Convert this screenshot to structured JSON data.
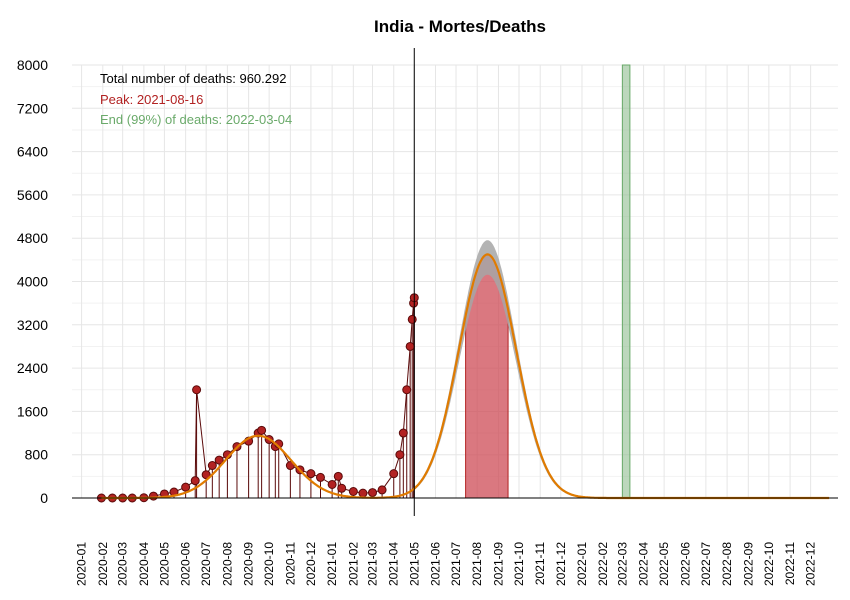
{
  "chart_data": {
    "type": "line",
    "title": "India - Mortes/Deaths",
    "xlabel": "",
    "ylabel": "",
    "ylim": [
      0,
      8000
    ],
    "y_ticks": [
      "0",
      "800",
      "1600",
      "2400",
      "3200",
      "4000",
      "4800",
      "5600",
      "6400",
      "7200",
      "8000"
    ],
    "x_ticks": [
      "2020-01",
      "2020-02",
      "2020-03",
      "2020-04",
      "2020-05",
      "2020-06",
      "2020-07",
      "2020-08",
      "2020-09",
      "2020-10",
      "2020-11",
      "2020-12",
      "2021-01",
      "2021-02",
      "2021-03",
      "2021-04",
      "2021-05",
      "2021-06",
      "2021-07",
      "2021-08",
      "2021-09",
      "2021-10",
      "2021-11",
      "2021-12",
      "2022-01",
      "2022-02",
      "2022-03",
      "2022-04",
      "2022-05",
      "2022-06",
      "2022-07",
      "2022-08",
      "2022-09",
      "2022-10",
      "2022-11",
      "2022-12"
    ],
    "annotations": {
      "total": "Total number of deaths: 960.292",
      "peak": "Peak: 2021-08-16",
      "end": "End (99%) of deaths: 2022-03-04"
    },
    "vertical_line_date": "2021-05-01",
    "peak_band": [
      "2021-07-15",
      "2021-09-15"
    ],
    "end_band": [
      "2022-03-01",
      "2022-03-12"
    ],
    "colors": {
      "observed": "#b22222",
      "observed_dark": "#5a0a0a",
      "fit": "#e07b00",
      "ci": "#a6a6a6",
      "peak_band": "#cd4b55",
      "end_band": "#8fbc8f",
      "peak_text": "#b22222",
      "end_text": "#6aaa6a"
    },
    "series": [
      {
        "name": "observed",
        "points": [
          [
            "2020-01-30",
            0
          ],
          [
            "2020-02-15",
            0
          ],
          [
            "2020-03-01",
            0
          ],
          [
            "2020-03-15",
            0
          ],
          [
            "2020-04-01",
            5
          ],
          [
            "2020-04-15",
            35
          ],
          [
            "2020-05-01",
            75
          ],
          [
            "2020-05-15",
            110
          ],
          [
            "2020-06-01",
            200
          ],
          [
            "2020-06-15",
            320
          ],
          [
            "2020-06-17",
            2000
          ],
          [
            "2020-07-01",
            430
          ],
          [
            "2020-07-10",
            600
          ],
          [
            "2020-07-20",
            700
          ],
          [
            "2020-08-01",
            800
          ],
          [
            "2020-08-15",
            950
          ],
          [
            "2020-09-01",
            1050
          ],
          [
            "2020-09-15",
            1200
          ],
          [
            "2020-09-20",
            1250
          ],
          [
            "2020-10-01",
            1080
          ],
          [
            "2020-10-10",
            950
          ],
          [
            "2020-10-15",
            1000
          ],
          [
            "2020-11-01",
            600
          ],
          [
            "2020-11-15",
            520
          ],
          [
            "2020-12-01",
            450
          ],
          [
            "2020-12-15",
            380
          ],
          [
            "2021-01-01",
            250
          ],
          [
            "2021-01-10",
            400
          ],
          [
            "2021-01-15",
            180
          ],
          [
            "2021-02-01",
            120
          ],
          [
            "2021-02-15",
            90
          ],
          [
            "2021-03-01",
            100
          ],
          [
            "2021-03-15",
            150
          ],
          [
            "2021-04-01",
            450
          ],
          [
            "2021-04-10",
            800
          ],
          [
            "2021-04-15",
            1200
          ],
          [
            "2021-04-20",
            2000
          ],
          [
            "2021-04-25",
            2800
          ],
          [
            "2021-04-28",
            3300
          ],
          [
            "2021-04-30",
            3600
          ],
          [
            "2021-05-01",
            3700
          ]
        ]
      },
      {
        "name": "fit",
        "curve": {
          "wave1": {
            "peak_date": "2020-09-15",
            "peak": 1150,
            "sd_days": 48
          },
          "wave2": {
            "peak_date": "2021-08-16",
            "peak": 4500,
            "sd_days": 42
          },
          "floor": 0
        }
      }
    ]
  }
}
